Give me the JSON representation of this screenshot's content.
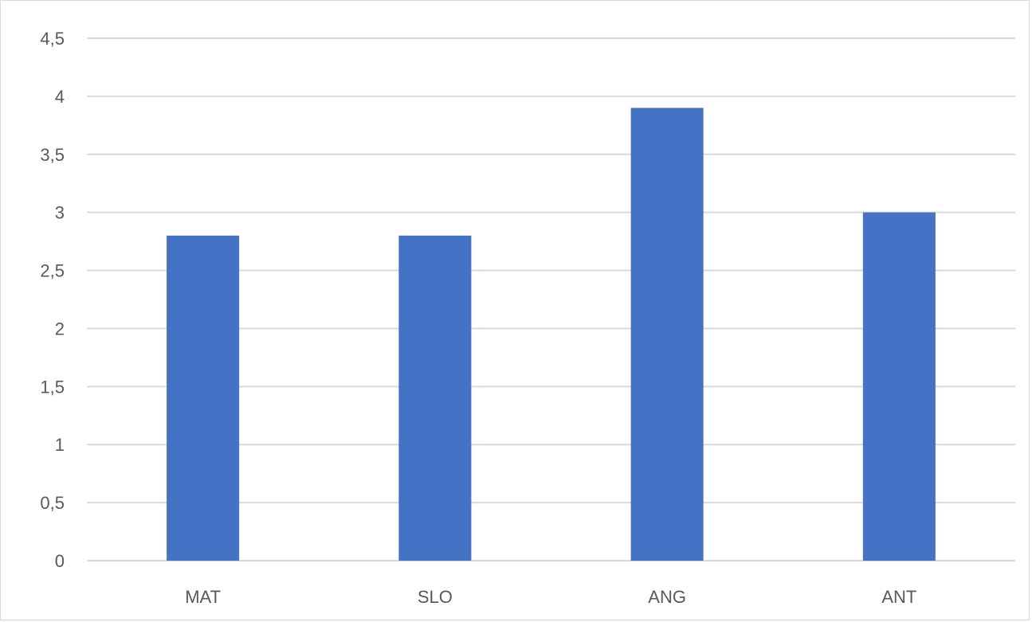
{
  "chart_data": {
    "type": "bar",
    "categories": [
      "MAT",
      "SLO",
      "ANG",
      "ANT"
    ],
    "values": [
      2.8,
      2.8,
      3.9,
      3.0
    ],
    "ylim": [
      0,
      4.5
    ],
    "yticks": [
      "0",
      "0,5",
      "1",
      "1,5",
      "2",
      "2,5",
      "3",
      "3,5",
      "4",
      "4,5"
    ],
    "grid": true,
    "legend": "none",
    "colors": {
      "bar": "#4472C4",
      "grid": "#d9d9d9",
      "label": "#595959"
    }
  }
}
